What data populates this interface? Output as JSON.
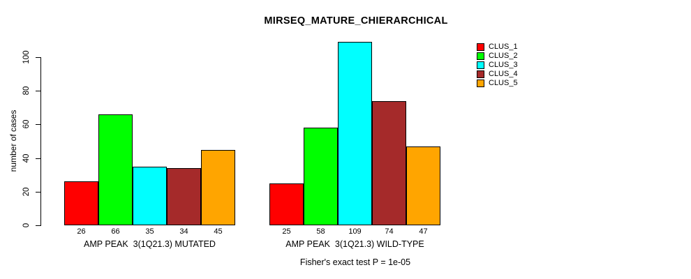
{
  "chart_data": {
    "type": "bar",
    "title": "MIRSEQ_MATURE_CHIERARCHICAL",
    "ylabel": "number of cases",
    "xlabel": "",
    "yticks": [
      0,
      20,
      40,
      60,
      80,
      100
    ],
    "ylim": [
      0,
      115
    ],
    "grid": false,
    "legend_position": "right",
    "categories": [
      "AMP PEAK  3(1Q21.3) MUTATED",
      "AMP PEAK  3(1Q21.3) WILD-TYPE"
    ],
    "series": [
      {
        "name": "CLUS_1",
        "color": "#FF0000",
        "values": [
          26,
          25
        ]
      },
      {
        "name": "CLUS_2",
        "color": "#00FF00",
        "values": [
          66,
          58
        ]
      },
      {
        "name": "CLUS_3",
        "color": "#00FFFF",
        "values": [
          35,
          109
        ]
      },
      {
        "name": "CLUS_4",
        "color": "#A52A2A",
        "values": [
          34,
          74
        ]
      },
      {
        "name": "CLUS_5",
        "color": "#FFA500",
        "values": [
          45,
          47
        ]
      }
    ],
    "bar_value_labels": {
      "group_1": [
        "26",
        "66",
        "35",
        "34",
        "45"
      ],
      "group_2": [
        "25",
        "58",
        "109",
        "74",
        "47"
      ]
    },
    "footnote": "Fisher's exact test P = 1e-05"
  }
}
